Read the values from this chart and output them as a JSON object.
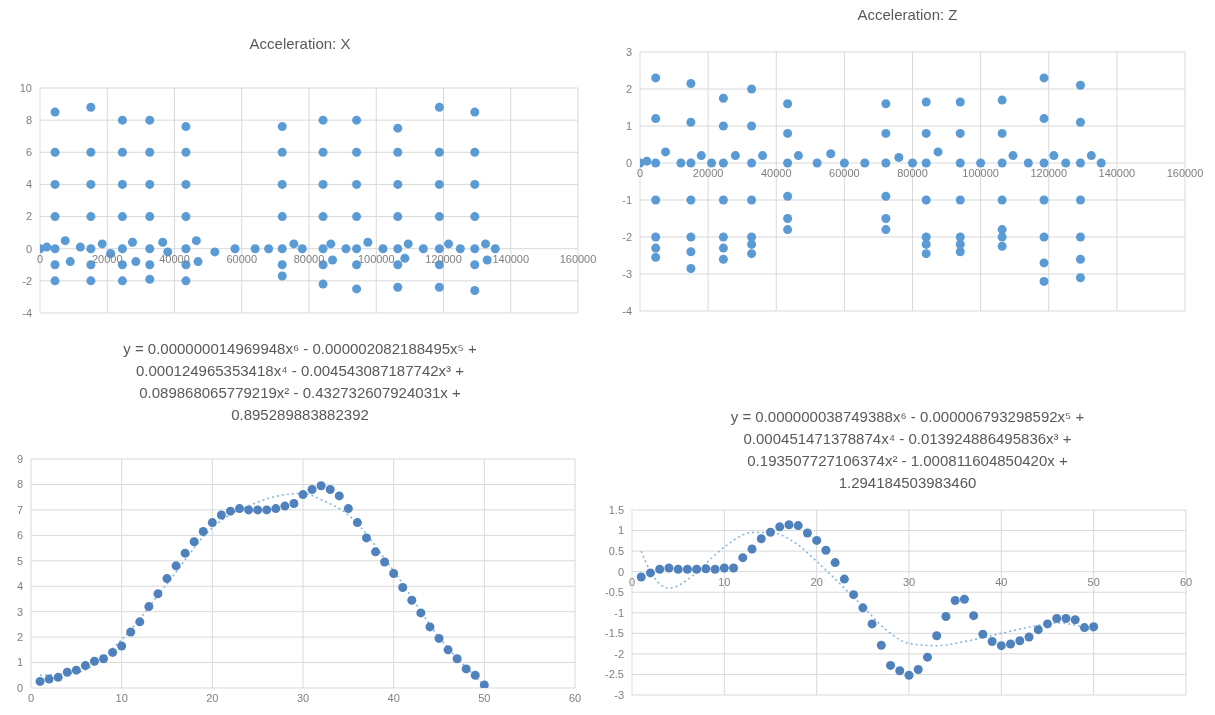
{
  "chart_data": [
    {
      "type": "scatter",
      "title": "Acceleration: X",
      "xlim": [
        0,
        160000
      ],
      "xticks": [
        0,
        20000,
        40000,
        60000,
        80000,
        100000,
        120000,
        140000,
        160000
      ],
      "ylim": [
        -4,
        10
      ],
      "yticks": [
        -4,
        -2,
        0,
        2,
        4,
        6,
        8,
        10
      ],
      "grid": true,
      "marker": "circle",
      "series": [
        {
          "color": "#5b9bd5",
          "x": [
            0,
            2000,
            4470,
            4470,
            4470,
            4470,
            4470,
            4470,
            4470,
            7500,
            9000,
            12000,
            15120,
            15120,
            15120,
            15120,
            15120,
            15120,
            15120,
            18500,
            21000,
            24510,
            24510,
            24510,
            24510,
            24510,
            24510,
            24510,
            27500,
            28500,
            32640,
            32640,
            32640,
            32640,
            32640,
            32640,
            32640,
            36500,
            38000,
            43400,
            43400,
            43400,
            43400,
            43400,
            43400,
            43400,
            46500,
            47000,
            52000,
            58000,
            64000,
            68000,
            72040,
            72040,
            72040,
            72040,
            72040,
            72040,
            72040,
            75500,
            78000,
            84180,
            84180,
            84180,
            84180,
            84180,
            84180,
            84180,
            86500,
            87000,
            91000,
            94150,
            94150,
            94150,
            94150,
            94150,
            94150,
            94150,
            97500,
            102000,
            106400,
            106400,
            106400,
            106400,
            106400,
            106400,
            106400,
            108500,
            109500,
            114000,
            118770,
            118770,
            118770,
            118770,
            118770,
            118770,
            118770,
            121500,
            125000,
            129300,
            129300,
            129300,
            129300,
            129300,
            129300,
            129300,
            132500,
            133000,
            135400
          ],
          "values": [
            0,
            0.1,
            8.5,
            6,
            4,
            2,
            0,
            -1,
            -2,
            0.5,
            -0.8,
            0.1,
            8.8,
            6,
            4,
            2,
            0,
            -1,
            -2,
            0.3,
            -0.3,
            8,
            6,
            4,
            2,
            0,
            -1,
            -2,
            0.4,
            -0.8,
            8,
            6,
            4,
            2,
            0,
            -1,
            -1.9,
            0.4,
            -0.2,
            7.6,
            6,
            4,
            2,
            0,
            -1,
            -2,
            0.5,
            -0.8,
            -0.2,
            0,
            0,
            0,
            7.6,
            6,
            4,
            2,
            0,
            -1,
            -1.7,
            0.3,
            0,
            8,
            6,
            4,
            2,
            0,
            -1,
            -2.2,
            0.3,
            -0.7,
            0,
            8,
            6,
            4,
            2,
            0,
            -1,
            -2.5,
            0.4,
            0,
            7.5,
            6,
            4,
            2,
            0,
            -1,
            -2.4,
            -0.6,
            0.3,
            0,
            8.8,
            6,
            4,
            2,
            0,
            -1,
            -2.4,
            0.3,
            0,
            8.5,
            6,
            4,
            2,
            0,
            -1,
            -2.6,
            0.3,
            -0.7,
            0
          ]
        }
      ]
    },
    {
      "type": "scatter",
      "title": "Acceleration: Z",
      "xlim": [
        0,
        160000
      ],
      "xticks": [
        0,
        20000,
        40000,
        60000,
        80000,
        100000,
        120000,
        140000,
        160000
      ],
      "ylim": [
        -4,
        3
      ],
      "yticks": [
        -4,
        -3,
        -2,
        -1,
        0,
        1,
        2,
        3
      ],
      "grid": true,
      "marker": "circle",
      "series": [
        {
          "color": "#5b9bd5",
          "x": [
            0,
            2000,
            4600,
            4600,
            4600,
            4600,
            4600,
            4600,
            4600,
            7500,
            12000,
            14940,
            14940,
            14940,
            14940,
            14940,
            14940,
            14940,
            18000,
            21000,
            24480,
            24480,
            24480,
            24480,
            24480,
            24480,
            24480,
            28000,
            32760,
            32760,
            32760,
            32760,
            32760,
            32760,
            32760,
            36000,
            43330,
            43330,
            43330,
            43330,
            43330,
            43330,
            46500,
            52000,
            56000,
            60000,
            66000,
            72180,
            72180,
            72180,
            72180,
            72180,
            72180,
            76000,
            80000,
            84020,
            84020,
            84020,
            84020,
            84020,
            84020,
            84020,
            87500,
            94020,
            94020,
            94020,
            94020,
            94020,
            94020,
            94020,
            100000,
            106320,
            106320,
            106320,
            106320,
            106320,
            106320,
            106320,
            109500,
            114000,
            118620,
            118620,
            118620,
            118620,
            118620,
            118620,
            118620,
            121500,
            125000,
            129310,
            129310,
            129310,
            129310,
            129310,
            129310,
            129310,
            132500,
            135400
          ],
          "values": [
            0,
            0.05,
            2.3,
            1.2,
            0,
            -1,
            -2,
            -2.3,
            -2.55,
            0.3,
            0,
            2.15,
            1.1,
            0,
            -1,
            -2,
            -2.4,
            -2.85,
            0.2,
            0,
            1.75,
            1,
            0,
            -1,
            -2,
            -2.3,
            -2.6,
            0.2,
            2,
            1,
            0,
            -1,
            -2,
            -2.2,
            -2.45,
            0.2,
            1.6,
            0.8,
            0,
            -0.9,
            -1.5,
            -1.8,
            0.2,
            0,
            0.25,
            0,
            0,
            1.6,
            0.8,
            0,
            -0.9,
            -1.5,
            -1.8,
            0.15,
            0,
            1.65,
            0.8,
            0,
            -1,
            -2,
            -2.2,
            -2.45,
            0.3,
            1.65,
            0.8,
            0,
            -1,
            -2,
            -2.2,
            -2.4,
            0,
            1.7,
            0.8,
            0,
            -1,
            -1.8,
            -2,
            -2.25,
            0.2,
            0,
            2.3,
            1.2,
            0,
            -1,
            -2,
            -2.7,
            -3.2,
            0.2,
            0,
            2.1,
            1.1,
            0,
            -1,
            -2,
            -2.6,
            -3.1,
            0.2,
            0
          ]
        }
      ]
    },
    {
      "type": "scatter",
      "title": "y = 0.000000014969948x⁶ - 0.000002082188495x⁵ + 0.000124965353418x⁴ - 0.004543087187742x³ + 0.089868065779219x² - 0.432732607924031x + 0.895289883882392",
      "xlim": [
        0,
        60
      ],
      "xticks": [
        0,
        10,
        20,
        30,
        40,
        50,
        60
      ],
      "ylim": [
        0,
        9
      ],
      "yticks": [
        0,
        1,
        2,
        3,
        4,
        5,
        6,
        7,
        8,
        9
      ],
      "grid": true,
      "marker": "circle",
      "series": [
        {
          "color": "#4f81bd",
          "x": [
            1,
            2,
            3,
            4,
            5,
            6,
            7,
            8,
            9,
            10,
            11,
            12,
            13,
            14,
            15,
            16,
            17,
            18,
            19,
            20,
            21,
            22,
            23,
            24,
            25,
            26,
            27,
            28,
            29,
            30,
            31,
            32,
            33,
            34,
            35,
            36,
            37,
            38,
            39,
            40,
            41,
            42,
            43,
            44,
            45,
            46,
            47,
            48,
            49,
            50
          ],
          "values": [
            0.26,
            0.35,
            0.42,
            0.62,
            0.7,
            0.88,
            1.05,
            1.15,
            1.4,
            1.65,
            2.2,
            2.6,
            3.2,
            3.7,
            4.3,
            4.8,
            5.3,
            5.75,
            6.15,
            6.5,
            6.8,
            6.95,
            7.05,
            7,
            7,
            7,
            7.05,
            7.15,
            7.25,
            7.6,
            7.8,
            7.95,
            7.8,
            7.55,
            7.05,
            6.5,
            5.9,
            5.35,
            4.95,
            4.5,
            3.95,
            3.45,
            2.95,
            2.4,
            1.95,
            1.5,
            1.15,
            0.75,
            0.5,
            0.12
          ]
        },
        {
          "type": "line",
          "line_style": "dotted",
          "marker": "none",
          "color": "#7fb3e0",
          "x": [
            1,
            5,
            10,
            15,
            20,
            25,
            28,
            30,
            32,
            35,
            40,
            45,
            50
          ],
          "values": [
            0.5,
            0.6,
            1.9,
            4.1,
            6.3,
            7.3,
            7.6,
            7.65,
            7.4,
            6.8,
            4.6,
            2,
            0.1
          ]
        }
      ]
    },
    {
      "type": "scatter",
      "title": "y = 0.000000038749388x⁶ - 0.000006793298592x⁵ + 0.000451471378874x⁴ - 0.013924886495836x³ + 0.193507727106374x² - 1.000811604850420x + 1.294184503983460",
      "xlim": [
        0,
        60
      ],
      "xticks": [
        0,
        10,
        20,
        30,
        40,
        50,
        60
      ],
      "ylim": [
        -3,
        1.5
      ],
      "yticks": [
        -3,
        -2.5,
        -2,
        -1.5,
        -1,
        -0.5,
        0,
        0.5,
        1,
        1.5
      ],
      "grid": true,
      "marker": "circle",
      "series": [
        {
          "color": "#4f81bd",
          "x": [
            1,
            2,
            3,
            4,
            5,
            6,
            7,
            8,
            9,
            10,
            11,
            12,
            13,
            14,
            15,
            16,
            17,
            18,
            19,
            20,
            21,
            22,
            23,
            24,
            25,
            26,
            27,
            28,
            29,
            30,
            31,
            32,
            33,
            34,
            35,
            36,
            37,
            38,
            39,
            40,
            41,
            42,
            43,
            44,
            45,
            46,
            47,
            48,
            49,
            50
          ],
          "values": [
            -0.13,
            -0.03,
            0.06,
            0.09,
            0.06,
            0.06,
            0.06,
            0.07,
            0.06,
            0.09,
            0.09,
            0.34,
            0.55,
            0.8,
            0.96,
            1.09,
            1.14,
            1.12,
            0.94,
            0.76,
            0.52,
            0.22,
            -0.18,
            -0.56,
            -0.88,
            -1.27,
            -1.79,
            -2.28,
            -2.41,
            -2.52,
            -2.38,
            -2.08,
            -1.56,
            -1.09,
            -0.7,
            -0.67,
            -1.07,
            -1.52,
            -1.7,
            -1.8,
            -1.76,
            -1.68,
            -1.59,
            -1.41,
            -1.27,
            -1.14,
            -1.14,
            -1.17,
            -1.36,
            -1.34
          ]
        },
        {
          "type": "line",
          "line_style": "dotted",
          "marker": "none",
          "color": "#7fb3e0",
          "x": [
            1,
            2,
            4,
            6,
            8,
            10,
            13,
            15,
            18,
            20,
            23,
            25,
            28,
            30,
            33,
            36,
            40,
            43,
            46,
            48,
            50
          ],
          "values": [
            0.5,
            0,
            -0.4,
            -0.2,
            0.2,
            0.6,
            0.95,
            0.95,
            0.65,
            0.25,
            -0.4,
            -0.85,
            -1.5,
            -1.75,
            -1.8,
            -1.7,
            -1.5,
            -1.35,
            -1.25,
            -1.3,
            -1.45
          ]
        }
      ]
    }
  ]
}
